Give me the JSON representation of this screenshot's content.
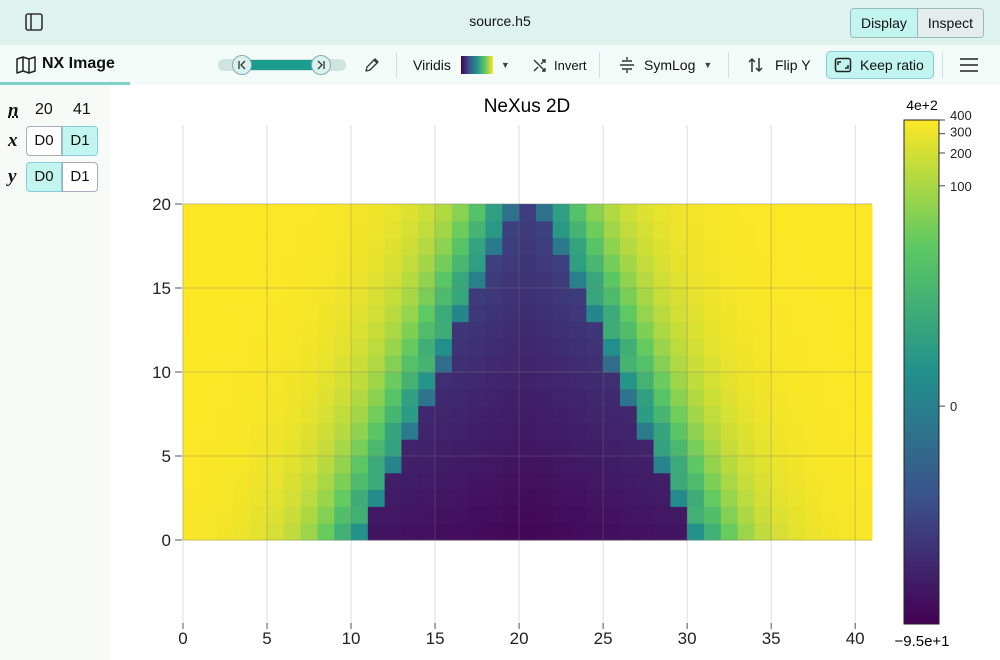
{
  "header": {
    "file_title": "source.h5",
    "display_label": "Display",
    "inspect_label": "Inspect"
  },
  "toolbar": {
    "tab_label": "NX Image",
    "colormap": "Viridis",
    "invert_label": "Invert",
    "scale": "SymLog",
    "flipy_label": "Flip Y",
    "keep_ratio_label": "Keep ratio"
  },
  "dims": {
    "n_label": "n",
    "size0": "20",
    "size1": "41",
    "x_label": "x",
    "y_label": "y",
    "d0": "D0",
    "d1": "D1"
  },
  "colors": {
    "accent": "#1a9c8e",
    "header_bg": "#dff3ee",
    "selected": "#c2f5ef"
  },
  "chart_data": {
    "type": "heatmap",
    "title": "NeXus 2D",
    "x_range": [
      0,
      41
    ],
    "y_range": [
      0,
      20
    ],
    "x_ticks": [
      "0",
      "5",
      "10",
      "15",
      "20",
      "25",
      "30",
      "35",
      "40"
    ],
    "y_ticks": [
      "0",
      "5",
      "10",
      "15",
      "20"
    ],
    "colorbar": {
      "top_label": "4e+2",
      "bottom_label": "−9.5e+1",
      "ticks": [
        "400",
        "300",
        "200",
        "100",
        "0"
      ],
      "min": -95,
      "max": 400,
      "scale": "symlog"
    },
    "grid": true
  }
}
